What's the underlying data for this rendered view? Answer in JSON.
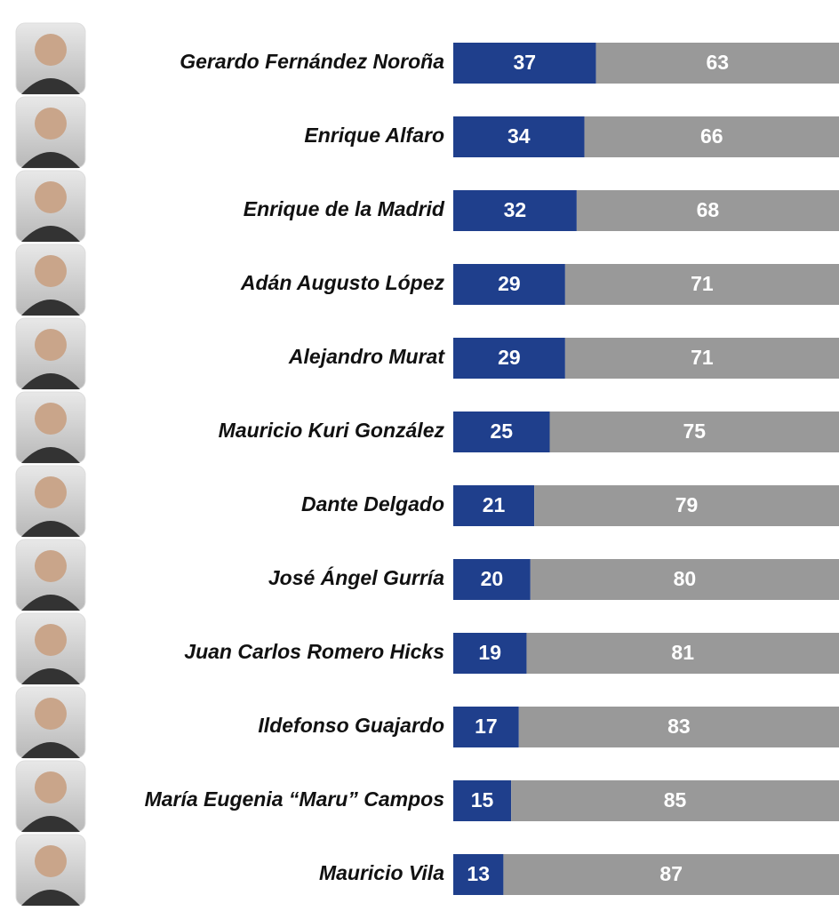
{
  "chart_data": {
    "type": "stacked-bar-horizontal",
    "categories": [
      "Gerardo Fernández Noroña",
      "Enrique Alfaro",
      "Enrique de la Madrid",
      "Adán Augusto López",
      "Alejandro Murat",
      "Mauricio Kuri González",
      "Dante Delgado",
      "José Ángel Gurría",
      "Juan Carlos Romero Hicks",
      "Ildefonso Guajardo",
      "María Eugenia “Maru” Campos",
      "Mauricio Vila"
    ],
    "series": [
      {
        "color": "#1f3f8c",
        "values": [
          37,
          34,
          32,
          29,
          29,
          25,
          21,
          20,
          19,
          17,
          15,
          13
        ]
      },
      {
        "color": "#999999",
        "values": [
          63,
          66,
          68,
          71,
          71,
          75,
          79,
          80,
          81,
          83,
          85,
          87
        ]
      }
    ]
  }
}
